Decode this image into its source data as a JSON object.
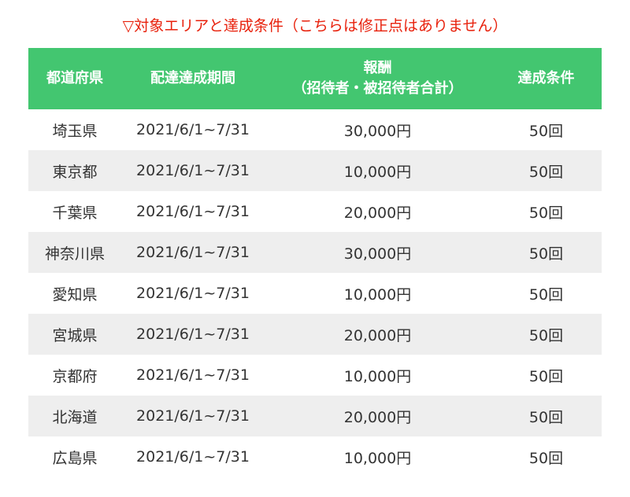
{
  "caption": "▽対象エリアと達成条件（こちらは修正点はありません）",
  "headers": {
    "prefecture": "都道府県",
    "period": "配達達成期間",
    "reward_line1": "報酬",
    "reward_line2": "（招待者・被招待者合計）",
    "condition": "達成条件"
  },
  "rows": [
    {
      "prefecture": "埼玉県",
      "period": "2021/6/1~7/31",
      "reward": "30,000円",
      "condition": "50回"
    },
    {
      "prefecture": "東京都",
      "period": "2021/6/1~7/31",
      "reward": "10,000円",
      "condition": "50回"
    },
    {
      "prefecture": "千葉県",
      "period": "2021/6/1~7/31",
      "reward": "20,000円",
      "condition": "50回"
    },
    {
      "prefecture": "神奈川県",
      "period": "2021/6/1~7/31",
      "reward": "30,000円",
      "condition": "50回"
    },
    {
      "prefecture": "愛知県",
      "period": "2021/6/1~7/31",
      "reward": "10,000円",
      "condition": "50回"
    },
    {
      "prefecture": "宮城県",
      "period": "2021/6/1~7/31",
      "reward": "20,000円",
      "condition": "50回"
    },
    {
      "prefecture": "京都府",
      "period": "2021/6/1~7/31",
      "reward": "10,000円",
      "condition": "50回"
    },
    {
      "prefecture": "北海道",
      "period": "2021/6/1~7/31",
      "reward": "20,000円",
      "condition": "50回"
    },
    {
      "prefecture": "広島県",
      "period": "2021/6/1~7/31",
      "reward": "10,000円",
      "condition": "50回"
    }
  ],
  "colors": {
    "caption": "#e8210c",
    "header_bg": "#43c670",
    "stripe": "#eeeeee"
  }
}
